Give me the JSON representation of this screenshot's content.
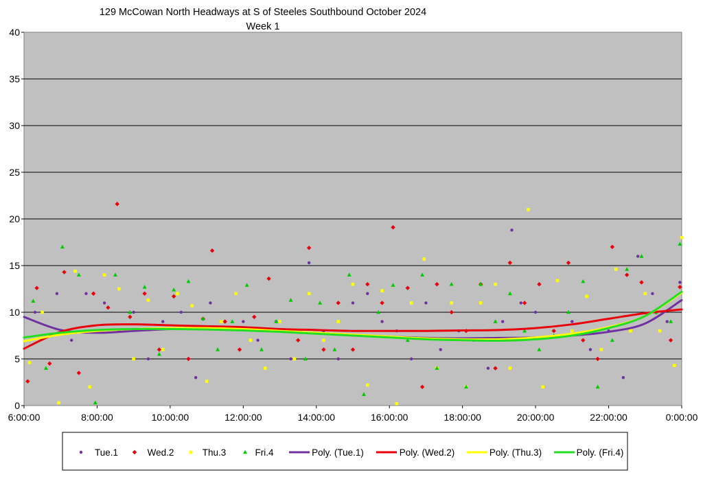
{
  "chart_data": {
    "type": "scatter",
    "title": "129 McCowan North Headways at S of Steeles Southbound October 2024",
    "subtitle": "Week 1",
    "xlabel": "",
    "ylabel": "",
    "xlim": [
      6,
      24
    ],
    "ylim": [
      0,
      40
    ],
    "x_ticks": [
      "6:00:00",
      "8:00:00",
      "10:00:00",
      "12:00:00",
      "14:00:00",
      "16:00:00",
      "18:00:00",
      "20:00:00",
      "22:00:00",
      "0:00:00"
    ],
    "y_ticks": [
      "0",
      "5",
      "10",
      "15",
      "20",
      "25",
      "30",
      "35",
      "40"
    ],
    "grid": true,
    "legend_position": "bottom",
    "series": [
      {
        "name": "Tue.1",
        "marker": "circle",
        "color": "#7030A0",
        "x": [
          6.3,
          6.9,
          7.3,
          7.7,
          8.2,
          8.6,
          9.0,
          9.4,
          9.8,
          10.3,
          10.7,
          11.1,
          11.5,
          12.0,
          12.4,
          12.9,
          13.3,
          13.8,
          14.2,
          14.6,
          15.0,
          15.4,
          15.8,
          16.2,
          16.6,
          17.0,
          17.4,
          17.9,
          18.3,
          18.7,
          19.1,
          19.35,
          19.6,
          20.0,
          20.5,
          21.0,
          21.5,
          22.0,
          22.4,
          22.8,
          23.2,
          23.6,
          23.95
        ],
        "y": [
          10,
          12,
          7,
          12,
          11,
          8,
          10,
          5,
          9,
          10,
          3,
          11,
          9,
          9,
          7,
          9,
          5,
          15.3,
          8,
          5,
          11,
          12,
          9,
          8,
          5,
          11,
          6,
          8,
          7,
          4,
          9,
          18.8,
          11,
          10,
          8,
          9,
          6,
          8,
          3,
          16,
          12,
          9,
          13.2
        ]
      },
      {
        "name": "Wed.2",
        "marker": "diamond",
        "color": "#E8000B",
        "x": [
          6.1,
          6.35,
          6.7,
          7.1,
          7.5,
          7.9,
          8.3,
          8.55,
          8.9,
          9.3,
          9.7,
          10.1,
          10.5,
          10.9,
          11.15,
          11.5,
          11.9,
          12.3,
          12.7,
          13.1,
          13.5,
          13.8,
          14.2,
          14.6,
          15.0,
          15.4,
          15.8,
          16.1,
          16.5,
          16.9,
          17.3,
          17.7,
          18.1,
          18.5,
          18.9,
          19.3,
          19.7,
          20.1,
          20.5,
          20.9,
          21.3,
          21.7,
          22.1,
          22.5,
          22.9,
          23.3,
          23.7,
          23.95
        ],
        "y": [
          2.6,
          12.6,
          4.5,
          14.3,
          3.5,
          12,
          10.5,
          21.6,
          9.5,
          12,
          6,
          11.7,
          5,
          9.3,
          16.6,
          9,
          6,
          9.5,
          13.6,
          8,
          7,
          16.9,
          6,
          11,
          6,
          13,
          11,
          19.1,
          12.6,
          2,
          13,
          10,
          8,
          13,
          4,
          15.3,
          11,
          13,
          8,
          15.3,
          7,
          5,
          17,
          14,
          13.2,
          10,
          7,
          12.7
        ]
      },
      {
        "name": "Thu.3",
        "marker": "square",
        "color": "#FFFF00",
        "x": [
          6.15,
          6.5,
          6.95,
          7.4,
          7.8,
          8.2,
          8.6,
          9.0,
          9.4,
          9.8,
          10.2,
          10.6,
          11.0,
          11.4,
          11.8,
          12.2,
          12.6,
          13.0,
          13.4,
          13.8,
          14.2,
          14.6,
          15.0,
          15.4,
          15.8,
          16.2,
          16.6,
          16.95,
          17.3,
          17.7,
          18.1,
          18.5,
          18.9,
          19.3,
          19.8,
          20.2,
          20.6,
          21.0,
          21.4,
          21.8,
          22.2,
          22.6,
          23.0,
          23.4,
          23.8,
          24.0
        ],
        "y": [
          4.6,
          10,
          0.3,
          14.4,
          2,
          14,
          12.5,
          5,
          11.3,
          6,
          12,
          10.7,
          2.6,
          9,
          12,
          7,
          4,
          9,
          5,
          12,
          7,
          9,
          13,
          2.2,
          12.3,
          0.2,
          11,
          15.7,
          4,
          11,
          2,
          11,
          13,
          4,
          21,
          2,
          13.4,
          8,
          11.7,
          6,
          14.6,
          8,
          12,
          8,
          4.3,
          18
        ]
      },
      {
        "name": "Fri.4",
        "marker": "triangle",
        "color": "#00CC00",
        "x": [
          6.25,
          6.6,
          7.05,
          7.5,
          7.95,
          8.5,
          8.9,
          9.3,
          9.7,
          10.1,
          10.5,
          10.9,
          11.3,
          11.7,
          12.1,
          12.5,
          12.9,
          13.3,
          13.7,
          14.1,
          14.5,
          14.9,
          15.3,
          15.7,
          16.1,
          16.5,
          16.9,
          17.3,
          17.7,
          18.1,
          18.5,
          18.9,
          19.3,
          19.7,
          20.1,
          20.5,
          20.9,
          21.3,
          21.7,
          22.1,
          22.5,
          22.9,
          23.3,
          23.7,
          23.95
        ],
        "y": [
          11.2,
          4,
          17,
          14,
          0.3,
          14,
          10,
          12.7,
          5.5,
          12.4,
          13.3,
          9.3,
          6,
          9,
          12.9,
          6,
          9,
          11.3,
          5,
          11,
          6,
          14,
          1.2,
          10,
          12.9,
          7,
          14,
          4,
          13,
          2,
          13,
          9,
          12,
          8,
          6,
          7.5,
          10,
          13.3,
          2,
          7,
          14.6,
          16,
          10,
          9,
          17.3
        ]
      }
    ],
    "trendlines": [
      {
        "name": "Poly. (Tue.1)",
        "color": "#7030A0",
        "x": [
          6,
          7,
          8,
          9,
          10,
          11,
          12,
          13,
          14,
          15,
          16,
          17,
          18,
          19,
          20,
          21,
          22,
          23,
          24
        ],
        "y": [
          9.5,
          8.1,
          7.8,
          8.0,
          8.2,
          8.3,
          8.2,
          8.0,
          7.8,
          7.6,
          7.4,
          7.25,
          7.2,
          7.25,
          7.3,
          7.5,
          7.9,
          8.8,
          11.3
        ]
      },
      {
        "name": "Poly. (Wed.2)",
        "color": "#E8000B",
        "x": [
          6,
          7,
          8,
          9,
          10,
          11,
          12,
          13,
          14,
          15,
          16,
          17,
          18,
          19,
          20,
          21,
          22,
          23,
          24
        ],
        "y": [
          6.1,
          7.9,
          8.6,
          8.7,
          8.6,
          8.5,
          8.4,
          8.2,
          8.1,
          8.0,
          8.0,
          8.0,
          8.05,
          8.1,
          8.3,
          8.7,
          9.3,
          9.9,
          10.3
        ]
      },
      {
        "name": "Poly. (Thu.3)",
        "color": "#FFFF00",
        "x": [
          6,
          7,
          8,
          9,
          10,
          11,
          12,
          13,
          14,
          15,
          16,
          17,
          18,
          19,
          20,
          21,
          22,
          23,
          24
        ],
        "y": [
          6.9,
          7.6,
          8.0,
          8.2,
          8.3,
          8.3,
          8.2,
          8.0,
          7.8,
          7.6,
          7.4,
          7.2,
          7.1,
          7.1,
          7.3,
          7.7,
          8.4,
          9.6,
          12.1
        ]
      },
      {
        "name": "Poly. (Fri.4)",
        "color": "#22DD22",
        "x": [
          6,
          7,
          8,
          9,
          10,
          11,
          12,
          13,
          14,
          15,
          16,
          17,
          18,
          19,
          20,
          21,
          22,
          23,
          24
        ],
        "y": [
          7.3,
          7.8,
          8.1,
          8.2,
          8.2,
          8.15,
          8.05,
          7.9,
          7.7,
          7.5,
          7.3,
          7.1,
          7.0,
          6.95,
          7.1,
          7.5,
          8.3,
          9.6,
          12.2
        ]
      }
    ]
  }
}
